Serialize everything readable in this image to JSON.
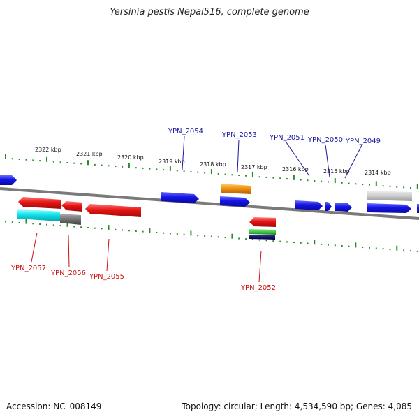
{
  "title": "Yersinia pestis Nepal516, complete genome",
  "footer": {
    "accession": "Accession: NC_008149",
    "summary": "Topology: circular; Length: 4,534,590 bp; Genes: 4,085"
  },
  "scale": {
    "labels": [
      "2322 kbp",
      "2321 kbp",
      "2320 kbp",
      "2319 kbp",
      "2318 kbp",
      "2317 kbp",
      "2316 kbp",
      "2315 kbp",
      "2314 kbp"
    ]
  },
  "genes": {
    "forward": [
      "YPN_2054",
      "YPN_2053",
      "YPN_2051",
      "YPN_2050",
      "YPN_2049"
    ],
    "reverse": [
      "YPN_2057",
      "YPN_2056",
      "YPN_2055",
      "YPN_2052"
    ]
  },
  "colors": {
    "forward_label": "#1a1aa0",
    "reverse_label": "#cc1111",
    "forward_gene": "#1414e6",
    "reverse_gene": "#e61414",
    "backbone": "#7a7a7a",
    "ticks": "#2a8a2a"
  }
}
